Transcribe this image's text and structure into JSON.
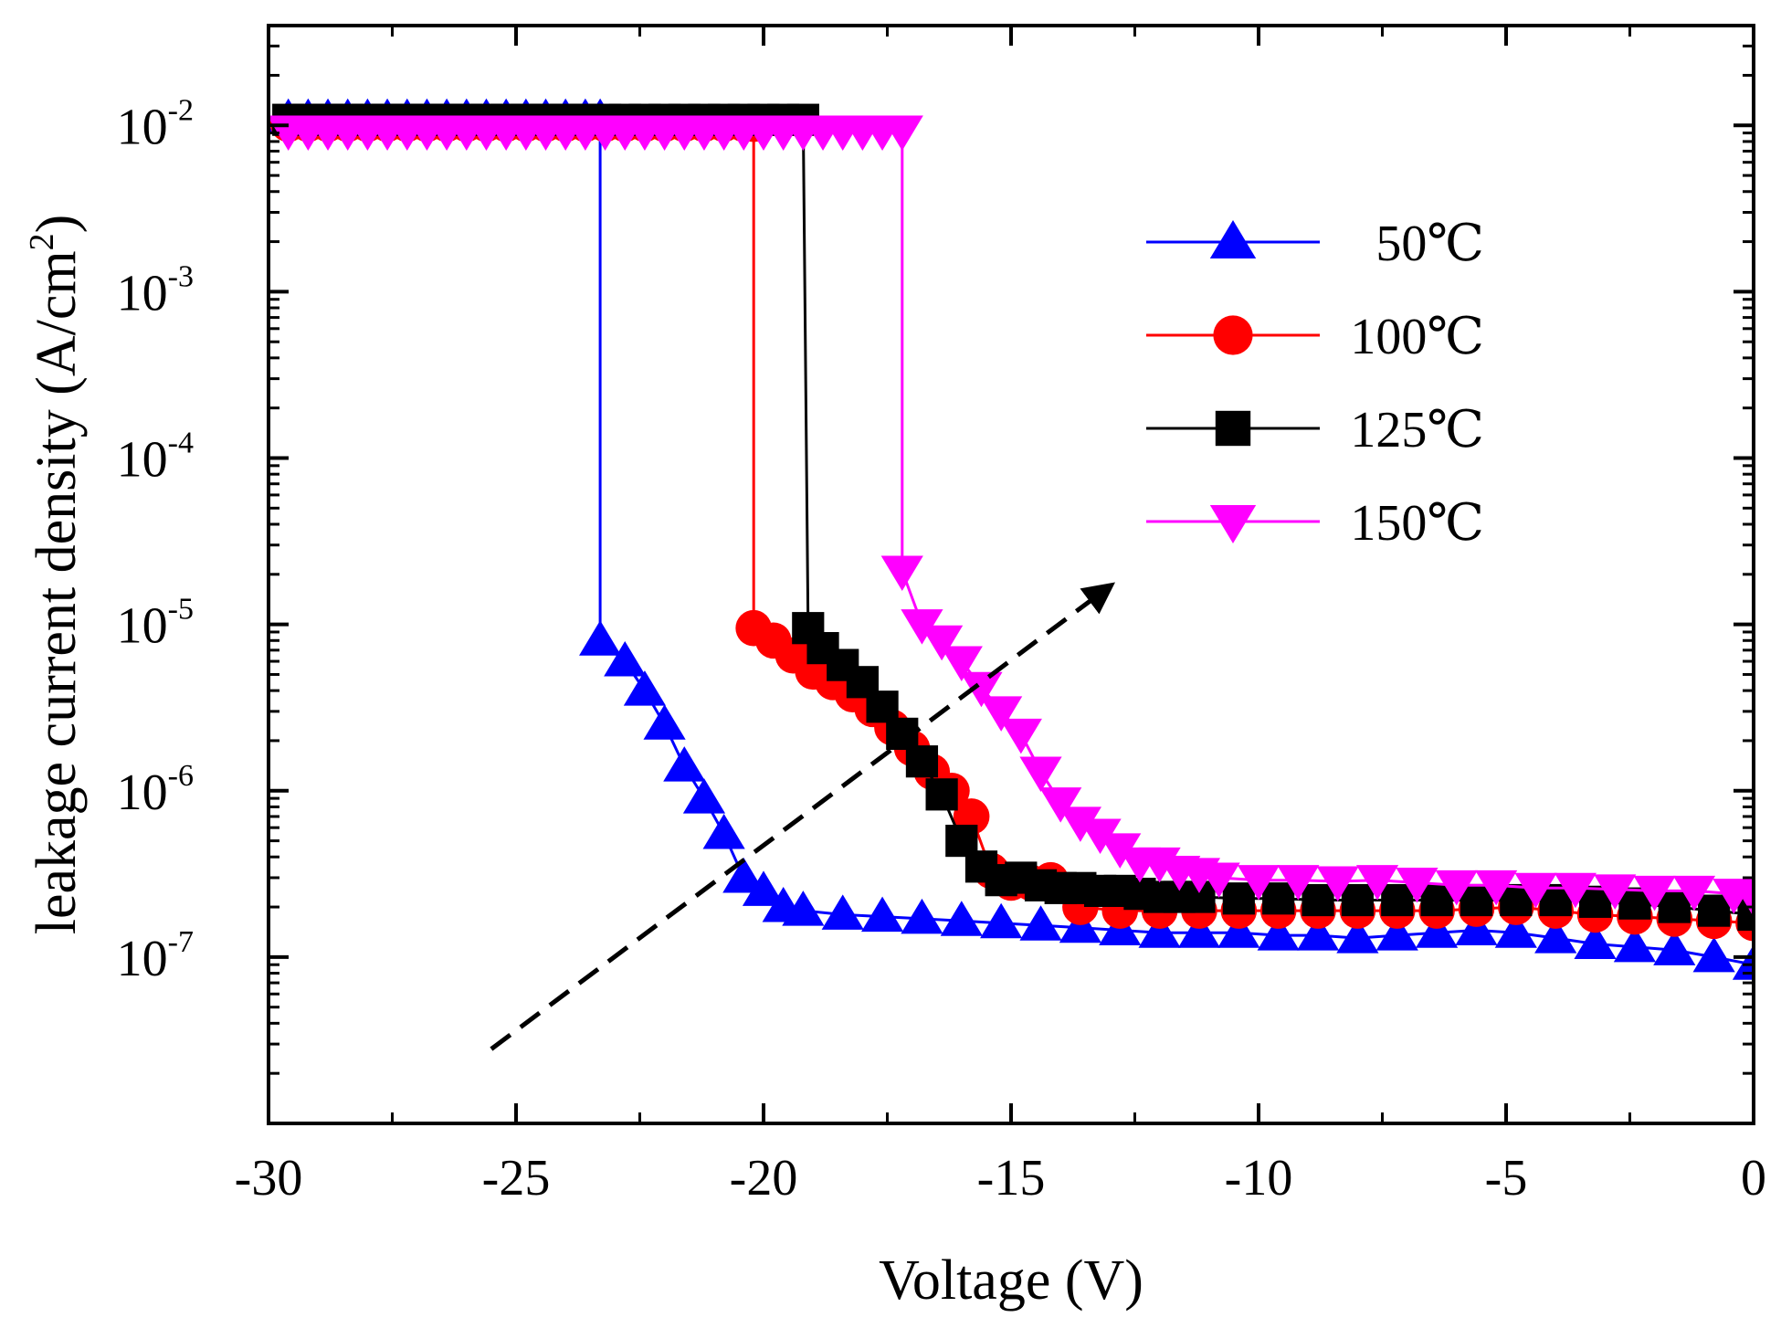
{
  "chart_data": {
    "type": "line",
    "title": "",
    "xlabel": "Voltage (V)",
    "ylabel": "leakage current density (A/cm²)",
    "xlim": [
      -30,
      0
    ],
    "ylim_log10": [
      -8,
      -1.4
    ],
    "xscale": "linear",
    "yscale": "log",
    "x_ticks": [
      -30,
      -25,
      -20,
      -15,
      -10,
      -5,
      0
    ],
    "x_tick_labels": [
      "-30",
      "-25",
      "-20",
      "-15",
      "-10",
      "-5",
      "0"
    ],
    "y_ticks": [
      {
        "value": 0.01,
        "base": "10",
        "exp": "-2"
      },
      {
        "value": 0.001,
        "base": "10",
        "exp": "-3"
      },
      {
        "value": 0.0001,
        "base": "10",
        "exp": "-4"
      },
      {
        "value": 1e-05,
        "base": "10",
        "exp": "-5"
      },
      {
        "value": 1e-06,
        "base": "10",
        "exp": "-6"
      },
      {
        "value": 1e-07,
        "base": "10",
        "exp": "-7"
      }
    ],
    "grid": false,
    "legend_position": "top-right",
    "arrow": {
      "from": [
        -25.5,
        2.8e-08
      ],
      "to": [
        -13.0,
        1.7e-05
      ],
      "style": "dashed"
    },
    "series": [
      {
        "name": "50℃",
        "color": "#0000ff",
        "marker": "triangle-up",
        "x": [
          -29.6,
          -29.2,
          -28.8,
          -28.4,
          -28.0,
          -27.6,
          -27.2,
          -26.8,
          -26.4,
          -26.0,
          -25.6,
          -25.2,
          -24.8,
          -24.4,
          -24.0,
          -23.6,
          -23.3,
          -23.3,
          -22.8,
          -22.4,
          -22.0,
          -21.6,
          -21.2,
          -20.8,
          -20.4,
          -20.0,
          -19.6,
          -19.2,
          -18.4,
          -17.6,
          -16.8,
          -16.0,
          -15.2,
          -14.4,
          -13.6,
          -12.8,
          -12.0,
          -11.2,
          -10.4,
          -9.6,
          -8.8,
          -8.0,
          -7.2,
          -6.4,
          -5.6,
          -4.8,
          -4.0,
          -3.2,
          -2.4,
          -1.6,
          -0.8,
          0.0
        ],
        "y": [
          0.011,
          0.011,
          0.011,
          0.011,
          0.011,
          0.011,
          0.011,
          0.011,
          0.011,
          0.011,
          0.011,
          0.011,
          0.011,
          0.011,
          0.011,
          0.011,
          0.011,
          8e-06,
          6e-06,
          4e-06,
          2.5e-06,
          1.4e-06,
          9e-07,
          5.5e-07,
          3e-07,
          2.5e-07,
          2e-07,
          1.9e-07,
          1.8e-07,
          1.75e-07,
          1.7e-07,
          1.65e-07,
          1.6e-07,
          1.55e-07,
          1.5e-07,
          1.45e-07,
          1.4e-07,
          1.4e-07,
          1.4e-07,
          1.35e-07,
          1.35e-07,
          1.3e-07,
          1.35e-07,
          1.4e-07,
          1.45e-07,
          1.4e-07,
          1.3e-07,
          1.2e-07,
          1.15e-07,
          1.1e-07,
          1e-07,
          9e-08
        ]
      },
      {
        "name": "100℃",
        "color": "#ff0000",
        "marker": "circle",
        "x": [
          -29.6,
          -29.2,
          -28.8,
          -28.4,
          -28.0,
          -27.6,
          -27.2,
          -26.8,
          -26.4,
          -26.0,
          -25.6,
          -25.2,
          -24.8,
          -24.4,
          -24.0,
          -23.6,
          -23.2,
          -22.8,
          -22.4,
          -22.0,
          -21.6,
          -21.2,
          -20.8,
          -20.4,
          -20.2,
          -20.2,
          -19.8,
          -19.4,
          -19.0,
          -18.6,
          -18.2,
          -17.8,
          -17.4,
          -17.0,
          -16.6,
          -16.2,
          -15.8,
          -15.4,
          -15.0,
          -14.6,
          -14.2,
          -13.6,
          -12.8,
          -12.0,
          -11.2,
          -10.4,
          -9.6,
          -8.8,
          -8.0,
          -7.2,
          -6.4,
          -5.6,
          -4.8,
          -4.0,
          -3.2,
          -2.4,
          -1.6,
          -0.8,
          0.0
        ],
        "y": [
          0.0102,
          0.0102,
          0.0102,
          0.0102,
          0.0102,
          0.0102,
          0.0102,
          0.0102,
          0.0102,
          0.0102,
          0.0102,
          0.0102,
          0.0102,
          0.0102,
          0.0102,
          0.0102,
          0.0102,
          0.0102,
          0.0102,
          0.0102,
          0.0102,
          0.0102,
          0.0102,
          0.0102,
          0.0102,
          9.5e-06,
          8e-06,
          6.5e-06,
          5.2e-06,
          4.5e-06,
          3.8e-06,
          3.1e-06,
          2.4e-06,
          1.8e-06,
          1.3e-06,
          1e-06,
          7e-07,
          3.3e-07,
          2.8e-07,
          2.8e-07,
          2.9e-07,
          2e-07,
          1.9e-07,
          1.9e-07,
          1.9e-07,
          1.9e-07,
          1.9e-07,
          1.9e-07,
          1.9e-07,
          1.9e-07,
          1.9e-07,
          1.95e-07,
          2e-07,
          1.9e-07,
          1.8e-07,
          1.75e-07,
          1.7e-07,
          1.65e-07,
          1.6e-07
        ]
      },
      {
        "name": "125℃",
        "color": "#000000",
        "marker": "square",
        "x": [
          -29.6,
          -29.2,
          -28.8,
          -28.4,
          -28.0,
          -27.6,
          -27.2,
          -26.8,
          -26.4,
          -26.0,
          -25.6,
          -25.2,
          -24.8,
          -24.4,
          -24.0,
          -23.6,
          -23.2,
          -22.8,
          -22.4,
          -22.0,
          -21.6,
          -21.2,
          -20.8,
          -20.4,
          -20.0,
          -19.6,
          -19.2,
          -19.1,
          -18.8,
          -18.4,
          -18.0,
          -17.6,
          -17.2,
          -16.8,
          -16.4,
          -16.0,
          -15.6,
          -15.2,
          -14.8,
          -14.4,
          -14.0,
          -13.6,
          -13.2,
          -12.8,
          -12.4,
          -12.0,
          -11.6,
          -11.2,
          -10.4,
          -9.6,
          -8.8,
          -8.0,
          -7.2,
          -6.4,
          -5.6,
          -4.8,
          -4.0,
          -3.2,
          -2.4,
          -1.6,
          -0.8,
          0.0
        ],
        "y": [
          0.0108,
          0.0108,
          0.0108,
          0.0108,
          0.0108,
          0.0108,
          0.0108,
          0.0108,
          0.0108,
          0.0108,
          0.0108,
          0.0108,
          0.0108,
          0.0108,
          0.0108,
          0.0108,
          0.0108,
          0.0108,
          0.0108,
          0.0108,
          0.0108,
          0.0108,
          0.0108,
          0.0108,
          0.0108,
          0.0108,
          0.0108,
          9.5e-06,
          7.2e-06,
          5.7e-06,
          4.5e-06,
          3.2e-06,
          2.2e-06,
          1.5e-06,
          9.5e-07,
          5e-07,
          3.5e-07,
          2.9e-07,
          3e-07,
          2.7e-07,
          2.6e-07,
          2.6e-07,
          2.5e-07,
          2.5e-07,
          2.4e-07,
          2.3e-07,
          2.3e-07,
          2.3e-07,
          2.25e-07,
          2.25e-07,
          2.2e-07,
          2.2e-07,
          2.2e-07,
          2.2e-07,
          2.2e-07,
          2.2e-07,
          2.2e-07,
          2.15e-07,
          2.1e-07,
          2e-07,
          1.9e-07,
          1.8e-07
        ]
      },
      {
        "name": "150℃",
        "color": "#ff00ff",
        "marker": "triangle-down",
        "x": [
          -29.6,
          -29.2,
          -28.8,
          -28.4,
          -28.0,
          -27.6,
          -27.2,
          -26.8,
          -26.4,
          -26.0,
          -25.6,
          -25.2,
          -24.8,
          -24.4,
          -24.0,
          -23.6,
          -23.2,
          -22.8,
          -22.4,
          -22.0,
          -21.6,
          -21.2,
          -20.8,
          -20.4,
          -20.0,
          -19.6,
          -19.2,
          -18.8,
          -18.4,
          -18.0,
          -17.6,
          -17.2,
          -17.2,
          -16.8,
          -16.4,
          -16.0,
          -15.6,
          -15.2,
          -14.8,
          -14.4,
          -14.0,
          -13.6,
          -13.2,
          -12.8,
          -12.4,
          -12.0,
          -11.6,
          -11.2,
          -10.8,
          -10.0,
          -9.2,
          -8.4,
          -7.6,
          -6.8,
          -6.0,
          -5.2,
          -4.4,
          -3.6,
          -2.8,
          -2.0,
          -1.2,
          -0.4,
          0.0
        ],
        "y": [
          0.0093,
          0.0093,
          0.0093,
          0.0093,
          0.0093,
          0.0093,
          0.0093,
          0.0093,
          0.0093,
          0.0093,
          0.0093,
          0.0093,
          0.0093,
          0.0093,
          0.0093,
          0.0093,
          0.0093,
          0.0093,
          0.0093,
          0.0093,
          0.0093,
          0.0093,
          0.0093,
          0.0093,
          0.0093,
          0.0093,
          0.0093,
          0.0093,
          0.0093,
          0.0093,
          0.0093,
          0.0093,
          2.1e-05,
          1e-05,
          8e-06,
          6e-06,
          4.2e-06,
          3e-06,
          2.2e-06,
          1.3e-06,
          8.5e-07,
          6.5e-07,
          5.5e-07,
          4.5e-07,
          3.7e-07,
          3.7e-07,
          3.3e-07,
          3.2e-07,
          3e-07,
          2.9e-07,
          2.9e-07,
          2.85e-07,
          2.9e-07,
          2.8e-07,
          2.7e-07,
          2.7e-07,
          2.6e-07,
          2.6e-07,
          2.55e-07,
          2.5e-07,
          2.5e-07,
          2.4e-07,
          2.3e-07
        ]
      }
    ]
  }
}
